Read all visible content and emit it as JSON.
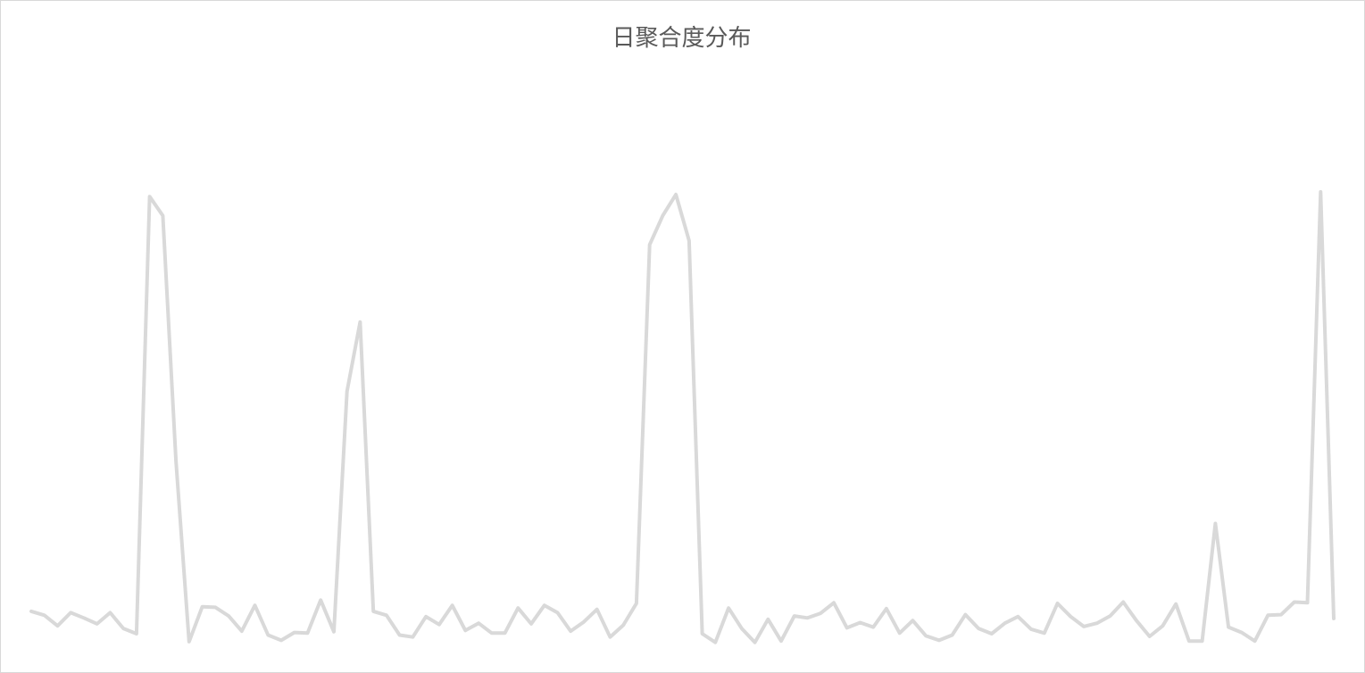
{
  "chart_data": {
    "type": "line",
    "title": "日聚合度分布",
    "xlabel": "",
    "ylabel": "",
    "grid": false,
    "legend": "none",
    "line_color": "#d9d9d9",
    "ylim": [
      0,
      100
    ],
    "values": [
      8.8,
      8.2,
      6.6,
      8.6,
      7.8,
      6.9,
      8.6,
      6.2,
      5.4,
      71.6,
      68.7,
      31.6,
      4.2,
      9.5,
      9.4,
      8.1,
      5.8,
      9.7,
      5.2,
      4.4,
      5.6,
      5.5,
      10.5,
      5.7,
      42.1,
      52.6,
      8.8,
      8.2,
      5.2,
      4.9,
      8.0,
      6.8,
      9.7,
      5.9,
      7.0,
      5.5,
      5.5,
      9.3,
      6.9,
      9.7,
      8.6,
      5.8,
      7.2,
      9.1,
      4.9,
      6.7,
      10.0,
      64.3,
      68.7,
      71.9,
      64.9,
      5.4,
      4.1,
      9.3,
      6.2,
      4.1,
      7.6,
      4.3,
      8.1,
      7.8,
      8.5,
      10.1,
      6.3,
      7.1,
      6.4,
      9.2,
      5.5,
      7.4,
      5.1,
      4.4,
      5.2,
      8.3,
      6.2,
      5.4,
      7.0,
      8.0,
      6.1,
      5.5,
      10.0,
      8.0,
      6.5,
      7.0,
      8.1,
      10.2,
      7.4,
      5.0,
      6.6,
      9.9,
      4.3,
      4.3,
      22.1,
      6.4,
      5.6,
      4.3,
      8.2,
      8.3,
      10.2,
      10.1,
      72.3,
      7.7
    ]
  }
}
